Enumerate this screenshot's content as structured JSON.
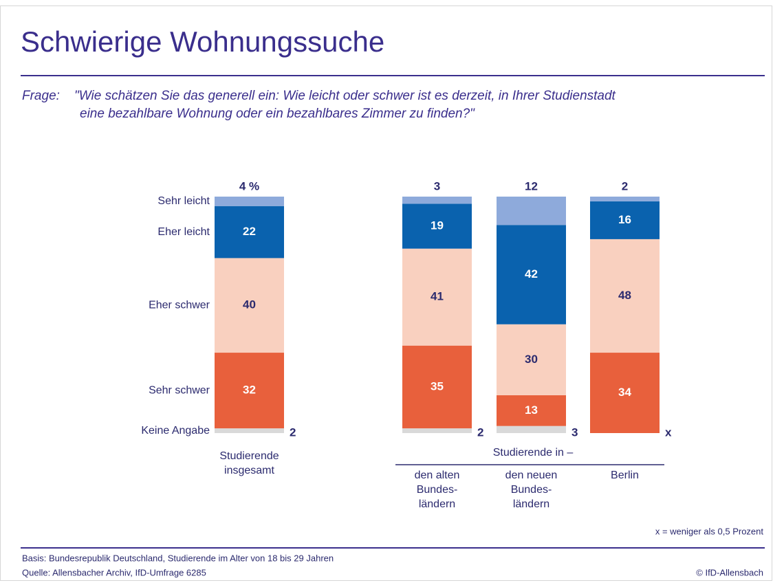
{
  "chart_data": {
    "type": "stacked_bar",
    "title": "Schwierige Wohnungssuche",
    "question": {
      "label": "Frage:",
      "lines": [
        "\"Wie schätzen Sie das generell ein: Wie leicht oder schwer ist es derzeit, in Ihrer Studienstadt",
        "eine bezahlbare Wohnung oder ein bezahlbares Zimmer zu finden?\""
      ]
    },
    "categories": [
      [
        "Studierende",
        "insgesamt"
      ],
      [
        "den alten",
        "Bundes-",
        "ländern"
      ],
      [
        "den neuen",
        "Bundes-",
        "ländern"
      ],
      [
        "Berlin"
      ]
    ],
    "group_label": "Studierende in –",
    "ylim": [
      0,
      100
    ],
    "series": [
      {
        "name": "Keine Angabe",
        "color": "#d9d9d9",
        "label_color": "#2b2a6e",
        "values": [
          2,
          2,
          3,
          0
        ],
        "value_labels": [
          "2",
          "2",
          "3",
          "x"
        ]
      },
      {
        "name": "Sehr schwer",
        "color": "#e8603c",
        "label_color": "#ffffff",
        "values": [
          32,
          35,
          13,
          34
        ]
      },
      {
        "name": "Eher schwer",
        "color": "#f9d0bf",
        "label_color": "#2b2a6e",
        "values": [
          40,
          41,
          30,
          48
        ]
      },
      {
        "name": "Eher leicht",
        "color": "#0a62ae",
        "label_color": "#ffffff",
        "values": [
          22,
          19,
          42,
          16
        ]
      },
      {
        "name": "Sehr leicht",
        "color": "#8eaadb",
        "label_color": "#2b2a6e",
        "values": [
          4,
          3,
          12,
          2
        ],
        "value_labels": [
          "4 %",
          "3",
          "12",
          "2"
        ]
      }
    ],
    "note": "x = weniger als 0,5 Prozent",
    "basis": "Basis: Bundesrepublik Deutschland, Studierende im Alter von 18 bis 29 Jahren",
    "source": "Quelle: Allensbacher Archiv, IfD-Umfrage 6285",
    "copyright": "© IfD-Allensbach"
  }
}
